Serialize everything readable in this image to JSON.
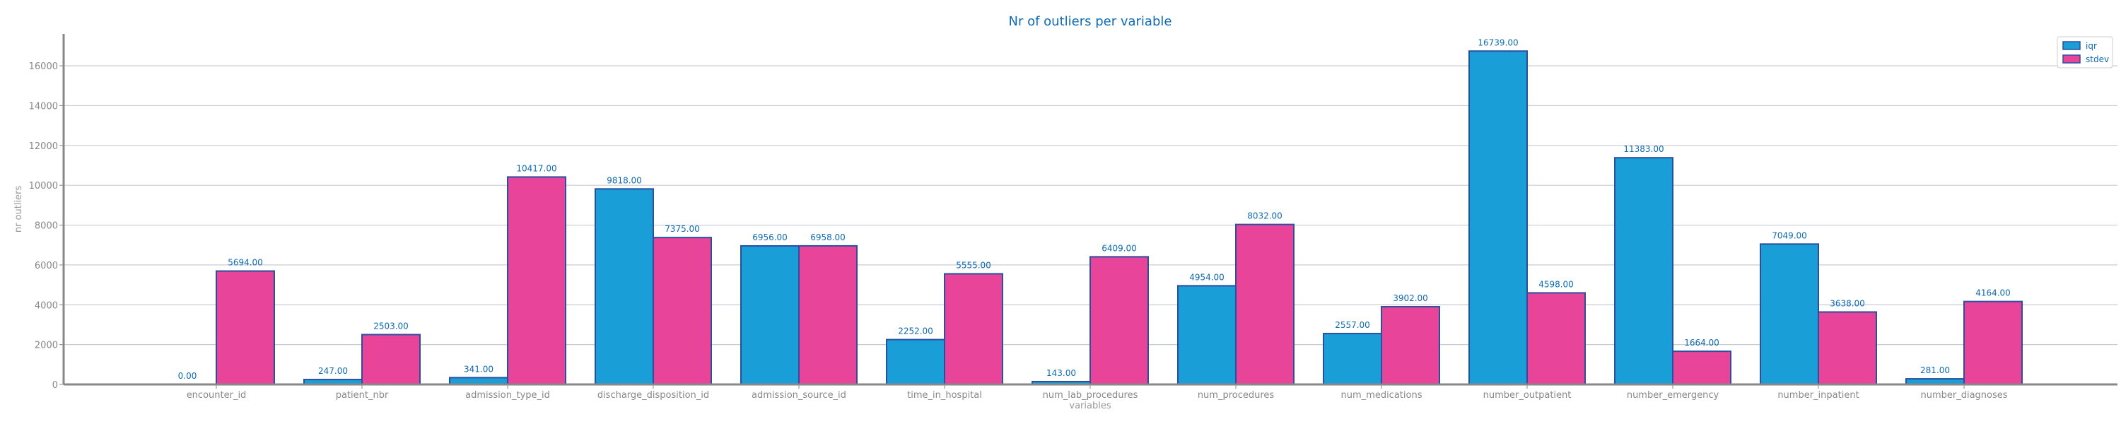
{
  "chart_data": {
    "type": "bar",
    "title": "Nr of outliers per variable",
    "xlabel": "variables",
    "ylabel": "nr outliers",
    "categories": [
      "encounter_id",
      "patient_nbr",
      "admission_type_id",
      "discharge_disposition_id",
      "admission_source_id",
      "time_in_hospital",
      "num_lab_procedures",
      "num_procedures",
      "num_medications",
      "number_outpatient",
      "number_emergency",
      "number_inpatient",
      "number_diagnoses"
    ],
    "series": [
      {
        "name": "iqr",
        "color": "#1a9ed8",
        "values": [
          0,
          247,
          341,
          9818,
          6956,
          2252,
          143,
          4954,
          2557,
          16739,
          11383,
          7049,
          281
        ],
        "labels": [
          "0.00",
          "247.00",
          "341.00",
          "9818.00",
          "6956.00",
          "2252.00",
          "143.00",
          "4954.00",
          "2557.00",
          "16739.00",
          "11383.00",
          "7049.00",
          "281.00"
        ]
      },
      {
        "name": "stdev",
        "color": "#e8459a",
        "values": [
          5694,
          2503,
          10417,
          7375,
          6958,
          5555,
          6409,
          8032,
          3902,
          4598,
          1664,
          3638,
          4164
        ],
        "labels": [
          "5694.00",
          "2503.00",
          "10417.00",
          "7375.00",
          "6958.00",
          "5555.00",
          "6409.00",
          "8032.00",
          "3902.00",
          "4598.00",
          "1664.00",
          "3638.00",
          "4164.00"
        ]
      }
    ],
    "yticks": [
      "0",
      "2000",
      "4000",
      "6000",
      "8000",
      "10000",
      "12000",
      "14000",
      "16000"
    ],
    "ylim": [
      0,
      17600
    ],
    "grid": true,
    "legend_position": "top-right",
    "edge_color": "#2a4fa0"
  }
}
